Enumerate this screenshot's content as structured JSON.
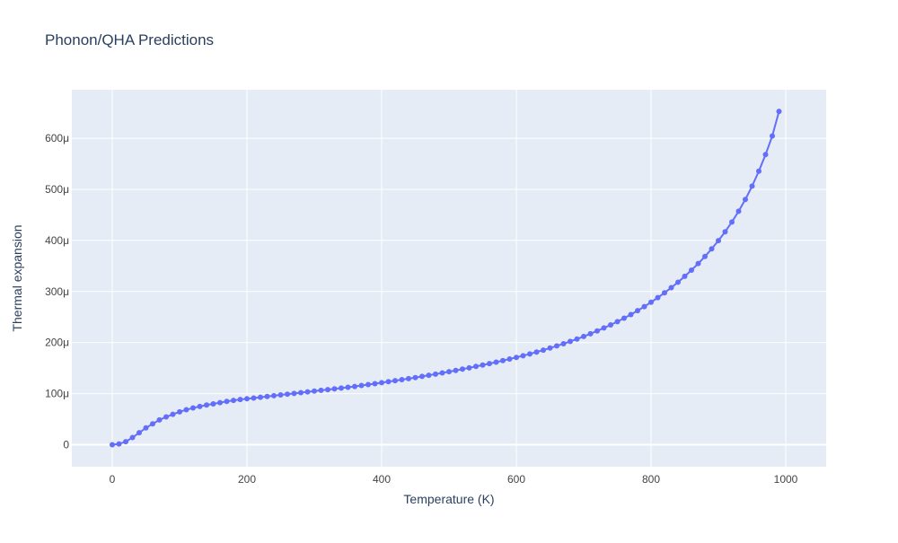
{
  "colors": {
    "plot_bg": "#E5ECF6",
    "grid": "#FFFFFF",
    "line": "#636EFA",
    "text": "#2A3F5F",
    "tick_text": "#444444"
  },
  "chart_data": {
    "type": "line",
    "title": "Phonon/QHA Predictions",
    "xlabel": "Temperature (K)",
    "ylabel": "Thermal expansion",
    "xlim": [
      -60,
      1060
    ],
    "ylim": [
      -4.3e-05,
      0.000695
    ],
    "xticks": [
      0,
      200,
      400,
      600,
      800,
      1000
    ],
    "xtick_labels": [
      "0",
      "200",
      "400",
      "600",
      "800",
      "1000"
    ],
    "yticks": [
      0,
      0.0001,
      0.0002,
      0.0003,
      0.0004,
      0.0005,
      0.0006
    ],
    "ytick_labels": [
      "0",
      "100μ",
      "200μ",
      "300μ",
      "400μ",
      "500μ",
      "600μ"
    ],
    "grid": true,
    "mode": "lines+markers",
    "series": [
      {
        "x": [
          0,
          10,
          20,
          30,
          40,
          50,
          60,
          70,
          80,
          90,
          100,
          110,
          120,
          130,
          140,
          150,
          160,
          170,
          180,
          190,
          200,
          210,
          220,
          230,
          240,
          250,
          260,
          270,
          280,
          290,
          300,
          310,
          320,
          330,
          340,
          350,
          360,
          370,
          380,
          390,
          400,
          410,
          420,
          430,
          440,
          450,
          460,
          470,
          480,
          490,
          500,
          510,
          520,
          530,
          540,
          550,
          560,
          570,
          580,
          590,
          600,
          610,
          620,
          630,
          640,
          650,
          660,
          670,
          680,
          690,
          700,
          710,
          720,
          730,
          740,
          750,
          760,
          770,
          780,
          790,
          800,
          810,
          820,
          830,
          840,
          850,
          860,
          870,
          880,
          890,
          900,
          910,
          920,
          930,
          940,
          950,
          960,
          970,
          980,
          990
        ],
        "values": [
          0,
          1.5e-06,
          6e-06,
          1.4e-05,
          2.35e-05,
          3.3e-05,
          4.1e-05,
          4.85e-05,
          5.45e-05,
          5.95e-05,
          6.45e-05,
          6.85e-05,
          7.2e-05,
          7.5e-05,
          7.78e-05,
          8e-05,
          8.25e-05,
          8.48e-05,
          8.68e-05,
          8.85e-05,
          9e-05,
          9.15e-05,
          9.3e-05,
          9.45e-05,
          9.6e-05,
          9.75e-05,
          9.9e-05,
          0.0001005,
          0.000102,
          0.0001035,
          0.000105,
          0.0001065,
          0.000108,
          0.0001095,
          0.000111,
          0.0001125,
          0.000114,
          0.000116,
          0.0001178,
          0.0001196,
          0.0001215,
          0.0001235,
          0.0001255,
          0.0001275,
          0.0001295,
          0.0001315,
          0.0001338,
          0.000136,
          0.0001383,
          0.0001406,
          0.000143,
          0.0001455,
          0.000148,
          0.0001506,
          0.0001533,
          0.000156,
          0.0001588,
          0.0001617,
          0.0001647,
          0.0001678,
          0.000171,
          0.0001743,
          0.0001778,
          0.0001815,
          0.0001853,
          0.0001893,
          0.0001935,
          0.0001978,
          0.0002023,
          0.000207,
          0.000212,
          0.0002173,
          0.0002228,
          0.0002286,
          0.0002346,
          0.000241,
          0.0002478,
          0.0002549,
          0.0002625,
          0.0002705,
          0.000279,
          0.000288,
          0.0002975,
          0.0003075,
          0.0003182,
          0.0003297,
          0.0003418,
          0.0003547,
          0.0003685,
          0.0003835,
          0.0003996,
          0.000417,
          0.0004361,
          0.0004571,
          0.0004802,
          0.0005063,
          0.0005355,
          0.000568,
          0.0006045,
          0.0006527
        ]
      }
    ]
  }
}
